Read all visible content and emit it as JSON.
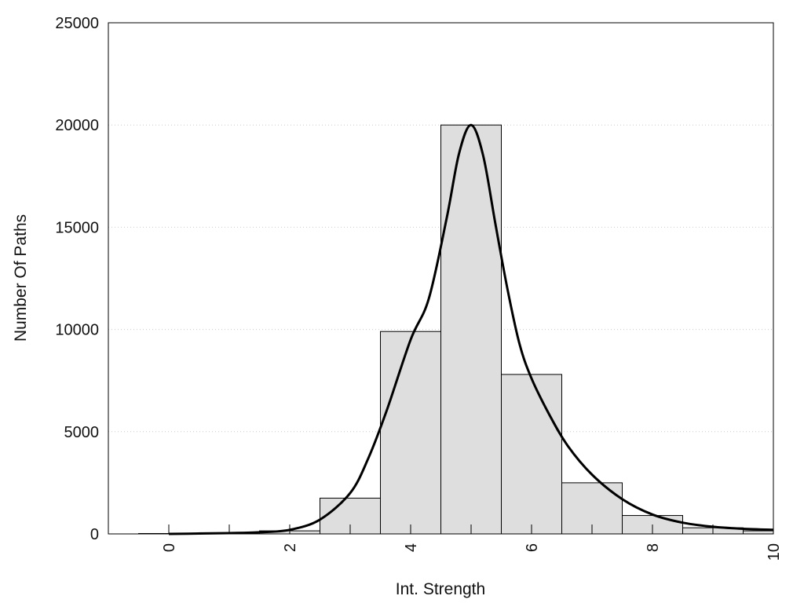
{
  "chart_data": {
    "type": "bar",
    "title": "",
    "xlabel": "Int. Strength",
    "ylabel": "Number Of Paths",
    "xlim": [
      -1,
      10
    ],
    "ylim": [
      0,
      25000
    ],
    "x_ticks": [
      "0",
      "2",
      "4",
      "6",
      "8",
      "10"
    ],
    "y_ticks": [
      "0",
      "5000",
      "10000",
      "15000",
      "20000",
      "25000"
    ],
    "grid": "horizontal dotted",
    "legend": "none",
    "bars": {
      "x": [
        0,
        1,
        2,
        3,
        4,
        5,
        6,
        7,
        8,
        9,
        10
      ],
      "values": [
        20,
        60,
        150,
        1750,
        9900,
        20000,
        7800,
        2500,
        900,
        300,
        150
      ],
      "fill": "#dedede"
    },
    "curve": {
      "x": [
        0,
        0.5,
        1,
        1.5,
        2,
        2.5,
        3,
        3.3,
        3.6,
        4,
        4.3,
        4.6,
        4.8,
        5,
        5.2,
        5.4,
        5.6,
        5.8,
        6,
        6.3,
        6.6,
        7,
        7.5,
        8,
        8.5,
        9,
        9.5,
        10
      ],
      "y": [
        0,
        20,
        40,
        80,
        200,
        700,
        2000,
        3700,
        6000,
        9500,
        11500,
        15500,
        18600,
        20000,
        18500,
        15200,
        12000,
        9300,
        7600,
        5800,
        4300,
        2900,
        1700,
        950,
        550,
        350,
        250,
        200
      ],
      "color": "#000000"
    }
  }
}
